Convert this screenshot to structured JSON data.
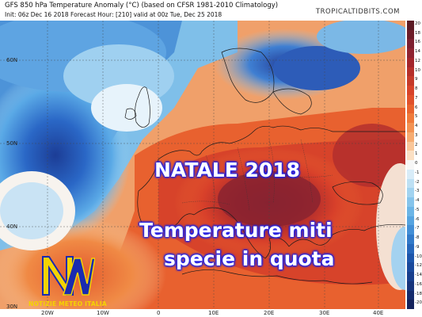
{
  "header": {
    "title": "GFS 850 hPa Temperature Anomaly (°C) (based on CFSR 1981-2010 Climatology)",
    "subtitle": "Init: 06z Dec 16 2018   Forecast Hour: [210]   valid at 00z Tue, Dec 25 2018",
    "site": "TROPICALTIDBITS.COM"
  },
  "map": {
    "lat_labels": [
      "60N",
      "50N",
      "40N",
      "30N"
    ],
    "lon_labels": [
      "20W",
      "10W",
      "0",
      "10E",
      "20E",
      "30E",
      "40E"
    ]
  },
  "scale": {
    "labels": [
      "20",
      "18",
      "16",
      "14",
      "12",
      "10",
      "9",
      "8",
      "7",
      "6",
      "5",
      "4",
      "3",
      "2",
      "1",
      "0",
      "-1",
      "-2",
      "-3",
      "-4",
      "-5",
      "-6",
      "-7",
      "-8",
      "-9",
      "-10",
      "-12",
      "-14",
      "-16",
      "-18",
      "-20"
    ],
    "colors": {
      "warm_dark": "#7a1f2a",
      "warm": "#e0452b",
      "neutral": "#f7f7f7",
      "cool": "#5aa9e6",
      "cool_dark": "#1b3f9e"
    }
  },
  "overlay": {
    "title": "NATALE 2018",
    "line1": "Temperature miti",
    "line2": "specie in quota"
  },
  "logo": {
    "text": "NOTIZIE METEO ITALIA"
  }
}
